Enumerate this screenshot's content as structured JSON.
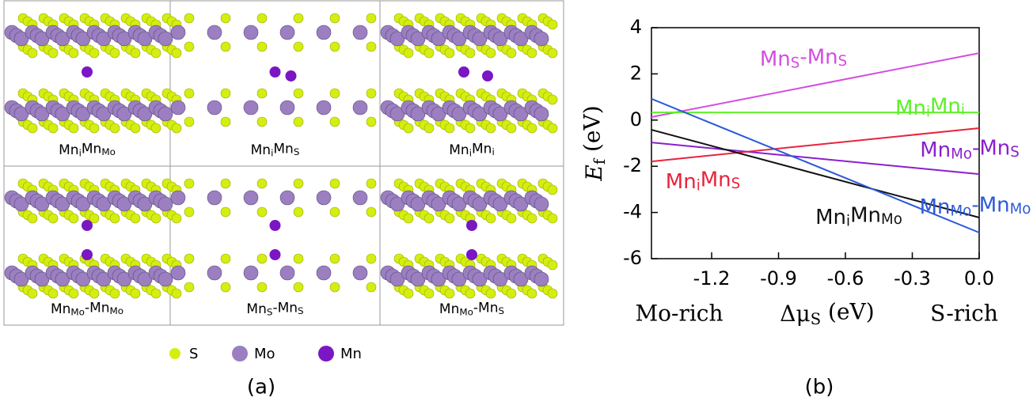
{
  "panel_a": {
    "cells": [
      {
        "label": [
          "Mn",
          "i",
          "Mn",
          "Mo"
        ]
      },
      {
        "label": [
          "Mn",
          "i",
          "Mn",
          "S"
        ]
      },
      {
        "label": [
          "Mn",
          "i",
          "Mn",
          "i"
        ]
      },
      {
        "label": [
          "Mn",
          "Mo",
          "-Mn",
          "Mo"
        ]
      },
      {
        "label": [
          "Mn",
          "S",
          "-Mn",
          "S"
        ]
      },
      {
        "label": [
          "Mn",
          "Mo",
          "-Mn",
          "S"
        ]
      }
    ],
    "legend": [
      {
        "name": "S",
        "color": "#d4ee10"
      },
      {
        "name": "Mo",
        "color": "#9b7fc0"
      },
      {
        "name": "Mn",
        "color": "#7a16c4"
      }
    ],
    "caption": "(a)"
  },
  "chart_data": {
    "type": "line",
    "x": [
      -1.47,
      0
    ],
    "xlim": [
      -1.47,
      0
    ],
    "xticks": [
      -1.2,
      -0.9,
      -0.6,
      -0.3,
      {
        "value": 0,
        "label": "0.0"
      }
    ],
    "ylim": [
      -6,
      4
    ],
    "yticks": [
      -6,
      -4,
      -2,
      0,
      2,
      4
    ],
    "y_label": [
      "E",
      "f",
      " (eV)"
    ],
    "x_label": [
      "Δμ",
      "S",
      " (eV)"
    ],
    "x_left_note": "Mo-rich",
    "x_right_note": "S-rich",
    "caption": "(b)",
    "series": [
      {
        "name": [
          "Mn",
          "S",
          "-Mn",
          "S"
        ],
        "color": "#d34ee0",
        "values": [
          0.13,
          2.9
        ]
      },
      {
        "name": [
          "Mn",
          "i",
          "Mn",
          "i"
        ],
        "color": "#5ef02a",
        "values": [
          0.33,
          0.33
        ]
      },
      {
        "name": [
          "Mn",
          "Mo",
          "-Mn",
          "S"
        ],
        "color": "#8a1fd0",
        "values": [
          -0.97,
          -2.34
        ]
      },
      {
        "name": [
          "Mn",
          "i",
          "Mn",
          "S"
        ],
        "color": "#e8243c",
        "values": [
          -1.79,
          -0.35
        ]
      },
      {
        "name": [
          "Mn",
          "i",
          "Mn",
          "Mo"
        ],
        "color": "#111111",
        "values": [
          -0.42,
          -4.22
        ]
      },
      {
        "name": [
          "Mn",
          "Mo",
          "-Mn",
          "Mo"
        ],
        "color": "#2c5ad8",
        "values": [
          0.92,
          -4.87
        ]
      }
    ]
  }
}
